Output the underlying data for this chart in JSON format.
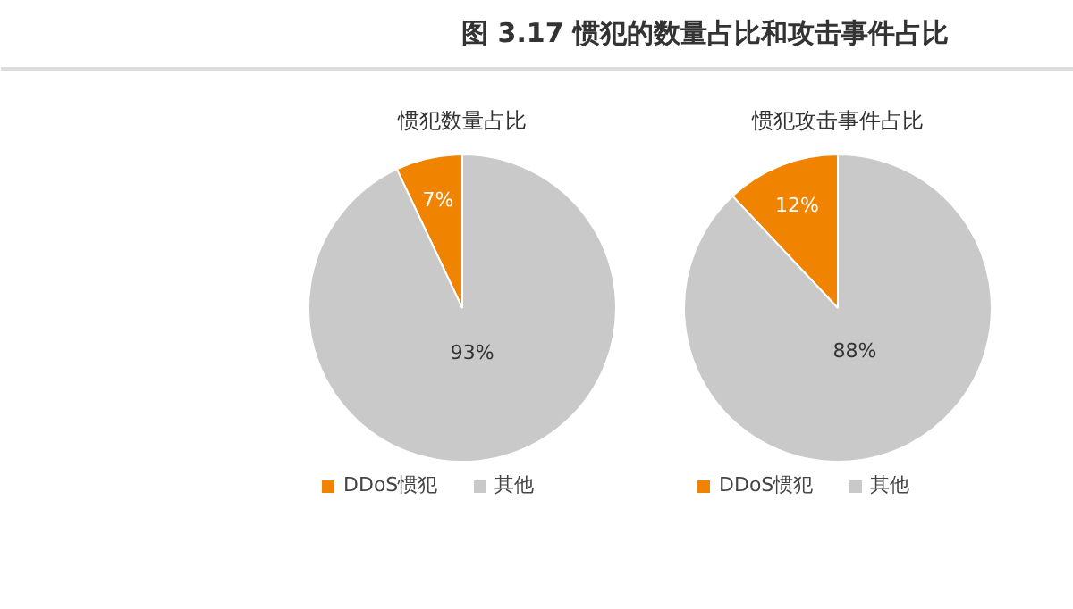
{
  "chart_data": [
    {
      "type": "other",
      "title": "图 3.17 惯犯的数量占比和攻击事件占比"
    },
    {
      "type": "pie",
      "title": "惯犯数量占比",
      "categories": [
        "DDoS惯犯",
        "其他"
      ],
      "values": [
        7,
        93
      ],
      "colors": [
        "#f08300",
        "#c9c9c9"
      ],
      "value_labels": [
        "7%",
        "93%"
      ],
      "legend": "bottom"
    },
    {
      "type": "pie",
      "title": "惯犯攻击事件占比",
      "categories": [
        "DDoS惯犯",
        "其他"
      ],
      "values": [
        12,
        88
      ],
      "colors": [
        "#f08300",
        "#c9c9c9"
      ],
      "value_labels": [
        "12%",
        "88%"
      ],
      "legend": "bottom"
    }
  ]
}
